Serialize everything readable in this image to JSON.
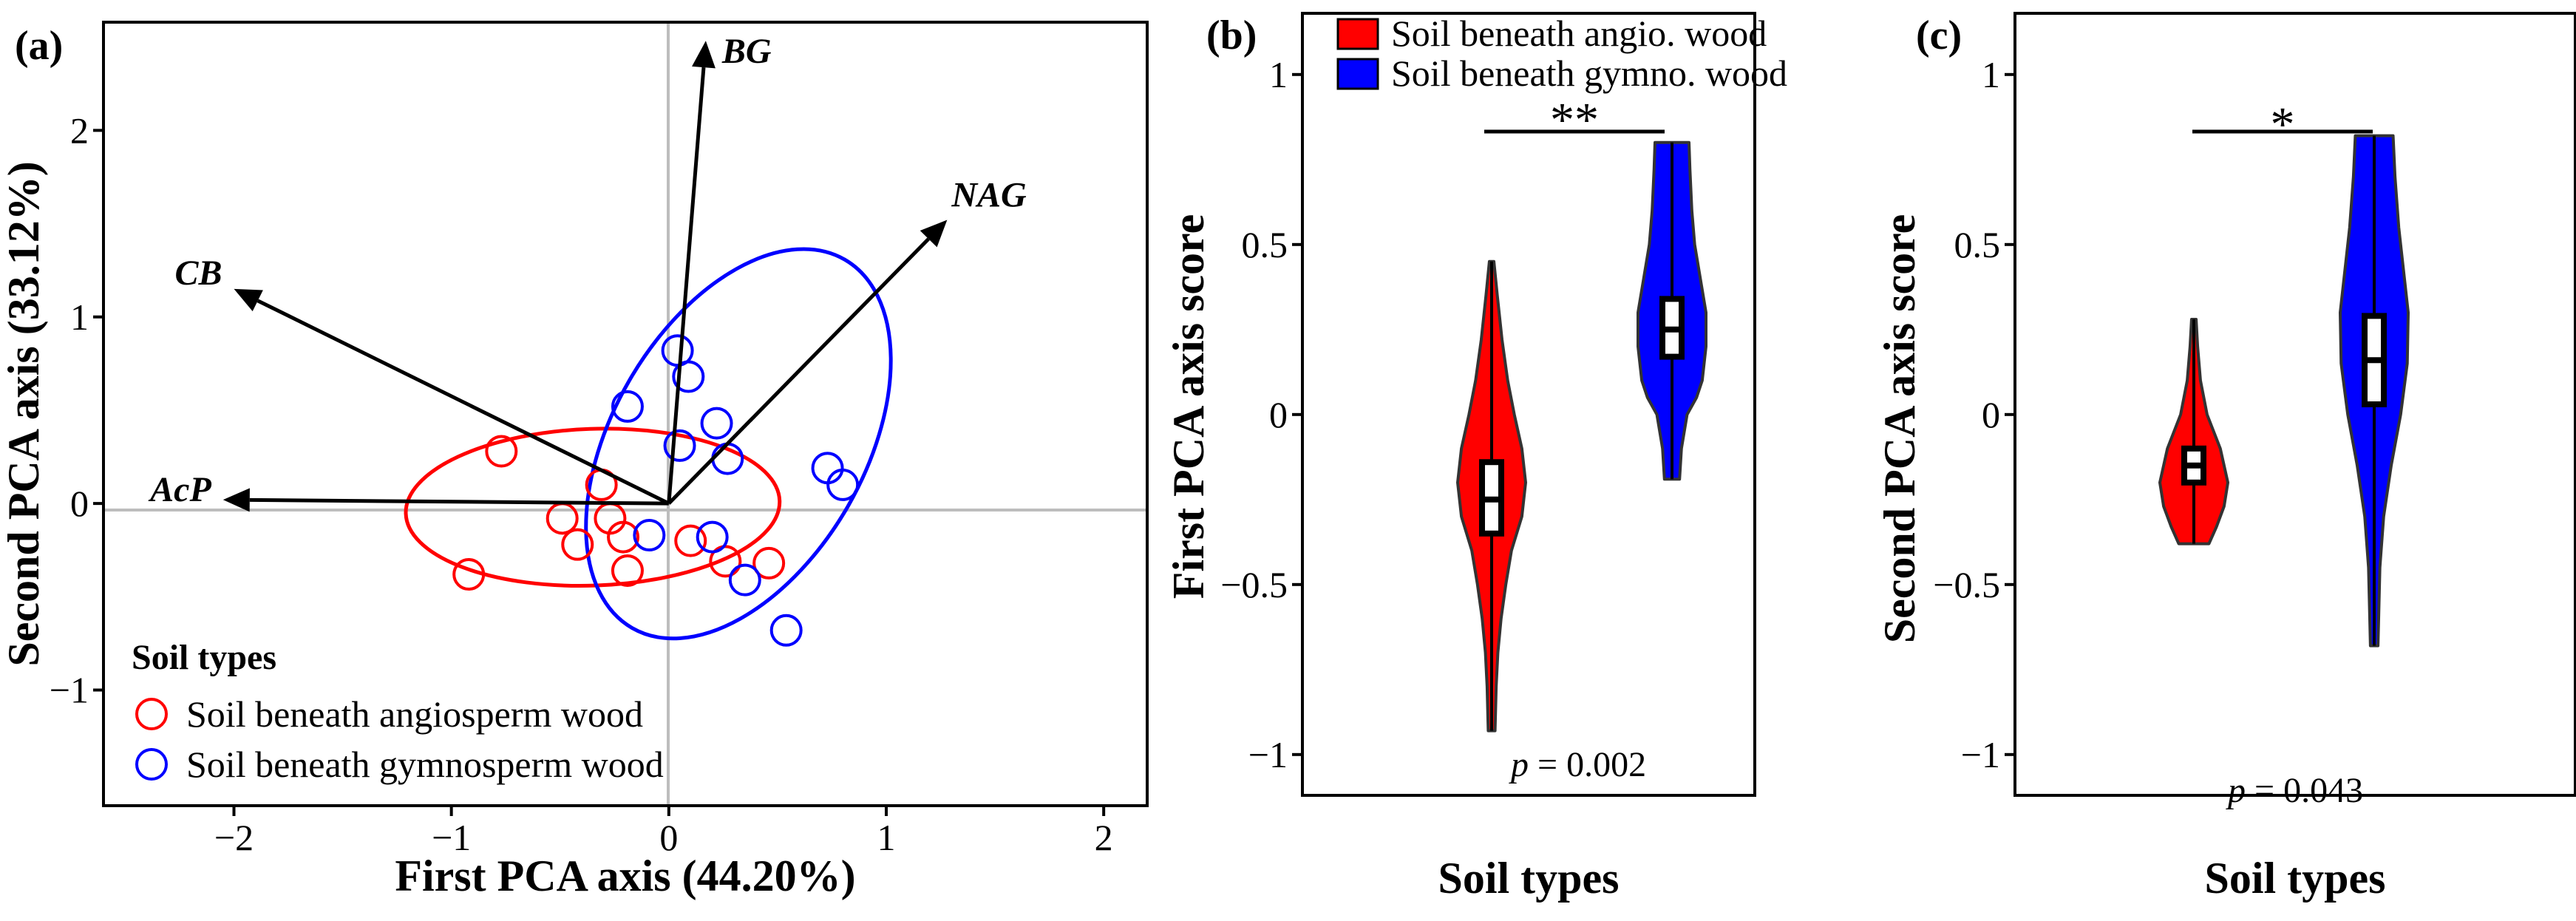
{
  "colors": {
    "angio": "#ff0000",
    "gymno": "#0000ff",
    "axis": "#000000",
    "refline": "#bdbdbd"
  },
  "chart_data": [
    {
      "panel_label": "(a)",
      "type": "scatter",
      "xlabel": "First PCA axis (44.20%)",
      "ylabel": "Second PCA axis (33.12%)",
      "xlim": [
        -2.6,
        2.2
      ],
      "ylim": [
        -1.62,
        2.58
      ],
      "xticks": [
        -2,
        -1,
        0,
        1,
        2
      ],
      "xtick_labels": [
        "−2",
        "−1",
        "0",
        "1",
        "2"
      ],
      "yticks": [
        -1,
        0,
        1,
        2
      ],
      "ytick_labels": [
        "−1",
        "0",
        "1",
        "2"
      ],
      "grid": false,
      "reference_lines": {
        "x": 0,
        "y": 0
      },
      "loadings": [
        {
          "label": "BG",
          "x": 0.17,
          "y": 2.48
        },
        {
          "label": "NAG",
          "x": 1.28,
          "y": 1.52
        },
        {
          "label": "CB",
          "x": -2.0,
          "y": 1.15
        },
        {
          "label": "AcP",
          "x": -2.05,
          "y": 0.02
        }
      ],
      "legend_title": "Soil types",
      "legend_position": "bottom-left",
      "series": [
        {
          "name": "Soil beneath angiosperm wood",
          "color": "#ff0000",
          "x": [
            -0.77,
            -0.31,
            -0.49,
            -0.27,
            -0.21,
            -0.42,
            -0.19,
            -0.92,
            0.1,
            0.26,
            0.46
          ],
          "y": [
            0.28,
            0.1,
            -0.08,
            -0.08,
            -0.18,
            -0.22,
            -0.36,
            -0.38,
            -0.2,
            -0.31,
            -0.32
          ],
          "ellipse": {
            "cx": -0.35,
            "cy": -0.02,
            "rx": 0.86,
            "ry": 0.42,
            "angle_deg": -2
          }
        },
        {
          "name": "Soil beneath gymnosperm wood",
          "color": "#0000ff",
          "x": [
            0.04,
            0.09,
            -0.19,
            0.05,
            0.22,
            0.27,
            0.73,
            0.8,
            -0.09,
            0.2,
            0.35,
            0.54
          ],
          "y": [
            0.82,
            0.68,
            0.52,
            0.31,
            0.43,
            0.24,
            0.19,
            0.1,
            -0.17,
            -0.18,
            -0.41,
            -0.68
          ],
          "ellipse": {
            "cx": 0.32,
            "cy": 0.32,
            "rx": 0.58,
            "ry": 1.14,
            "angle_deg": 30
          }
        }
      ]
    },
    {
      "panel_label": "(b)",
      "type": "violin",
      "xlabel": "Soil types",
      "ylabel": "First PCA axis score",
      "ylim": [
        -1.12,
        1.18
      ],
      "yticks": [
        -1,
        -0.5,
        0,
        0.5,
        1
      ],
      "ytick_labels": [
        "−1",
        "−0.5",
        "0",
        "0.5",
        "1"
      ],
      "legend_position": "top",
      "legend": [
        "Soil beneath angio. wood",
        "Soil beneath gymno. wood"
      ],
      "significance": "**",
      "p_prefix": "p",
      "p_value": "= 0.002",
      "groups": [
        {
          "name": "Soil beneath angio. wood",
          "color": "#ff0000",
          "min": -0.93,
          "max": 0.45,
          "q1": -0.35,
          "median": -0.25,
          "q3": -0.14,
          "profile": [
            [
              0.45,
              0.012
            ],
            [
              0.35,
              0.03
            ],
            [
              0.22,
              0.055
            ],
            [
              0.1,
              0.085
            ],
            [
              0.0,
              0.12
            ],
            [
              -0.1,
              0.16
            ],
            [
              -0.2,
              0.18
            ],
            [
              -0.3,
              0.16
            ],
            [
              -0.4,
              0.105
            ],
            [
              -0.5,
              0.075
            ],
            [
              -0.6,
              0.05
            ],
            [
              -0.7,
              0.033
            ],
            [
              -0.8,
              0.024
            ],
            [
              -0.93,
              0.018
            ]
          ]
        },
        {
          "name": "Soil beneath gymno. wood",
          "color": "#0000ff",
          "min": -0.19,
          "max": 0.8,
          "q1": 0.17,
          "median": 0.25,
          "q3": 0.34,
          "profile": [
            [
              0.8,
              0.09
            ],
            [
              0.72,
              0.095
            ],
            [
              0.6,
              0.105
            ],
            [
              0.5,
              0.12
            ],
            [
              0.4,
              0.15
            ],
            [
              0.3,
              0.18
            ],
            [
              0.2,
              0.18
            ],
            [
              0.1,
              0.16
            ],
            [
              0.05,
              0.13
            ],
            [
              0.0,
              0.08
            ],
            [
              -0.1,
              0.05
            ],
            [
              -0.19,
              0.04
            ]
          ]
        }
      ]
    },
    {
      "panel_label": "(c)",
      "type": "violin",
      "xlabel": "Soil types",
      "ylabel": "Second PCA axis score",
      "ylim": [
        -1.12,
        1.18
      ],
      "yticks": [
        -1,
        -0.5,
        0,
        0.5,
        1
      ],
      "ytick_labels": [
        "−1",
        "−0.5",
        "0",
        "0.5",
        "1"
      ],
      "significance": "*",
      "p_prefix": "p",
      "p_value": "= 0.043",
      "groups": [
        {
          "name": "Soil beneath angio. wood",
          "color": "#ff0000",
          "min": -0.38,
          "max": 0.28,
          "q1": -0.2,
          "median": -0.15,
          "q3": -0.1,
          "profile": [
            [
              0.28,
              0.012
            ],
            [
              0.2,
              0.02
            ],
            [
              0.1,
              0.035
            ],
            [
              0.0,
              0.07
            ],
            [
              -0.1,
              0.14
            ],
            [
              -0.2,
              0.18
            ],
            [
              -0.27,
              0.16
            ],
            [
              -0.33,
              0.12
            ],
            [
              -0.38,
              0.08
            ]
          ]
        },
        {
          "name": "Soil beneath gymno. wood",
          "color": "#0000ff",
          "min": -0.68,
          "max": 0.82,
          "q1": 0.03,
          "median": 0.16,
          "q3": 0.29,
          "profile": [
            [
              0.82,
              0.1
            ],
            [
              0.7,
              0.11
            ],
            [
              0.55,
              0.13
            ],
            [
              0.45,
              0.15
            ],
            [
              0.3,
              0.18
            ],
            [
              0.15,
              0.175
            ],
            [
              0.0,
              0.14
            ],
            [
              -0.15,
              0.09
            ],
            [
              -0.3,
              0.05
            ],
            [
              -0.45,
              0.03
            ],
            [
              -0.68,
              0.02
            ]
          ]
        }
      ]
    }
  ]
}
